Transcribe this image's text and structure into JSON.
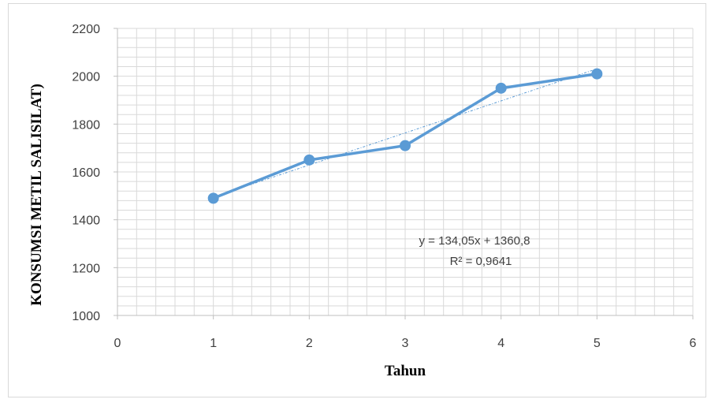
{
  "chart_data": {
    "type": "line",
    "xlabel": "Tahun",
    "ylabel": "KONSUMSI METIL SALISILAT)",
    "xlim": [
      0,
      6
    ],
    "ylim": [
      1000,
      2200
    ],
    "x_ticks": [
      "0",
      "1",
      "2",
      "3",
      "4",
      "5",
      "6"
    ],
    "y_ticks": [
      "1000",
      "1200",
      "1400",
      "1600",
      "1800",
      "2000",
      "2200"
    ],
    "grid": true,
    "series": [
      {
        "x": [
          1,
          2,
          3,
          4,
          5
        ],
        "y": [
          1490,
          1650,
          1710,
          1950,
          2010
        ],
        "color": "#5b9bd5"
      }
    ],
    "trendline": {
      "type": "linear",
      "slope": 134.05,
      "intercept": 1360.8,
      "equation": "y = 134,05x + 1360,8",
      "r_squared": "R² = 0,9641",
      "color": "#5b9bd5"
    }
  }
}
